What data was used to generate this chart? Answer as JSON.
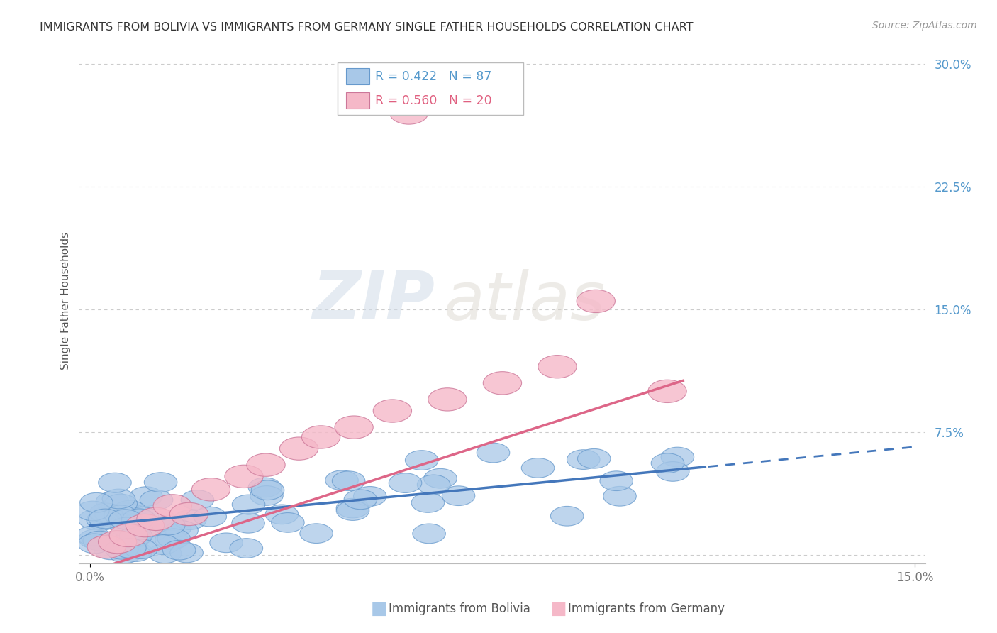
{
  "title": "IMMIGRANTS FROM BOLIVIA VS IMMIGRANTS FROM GERMANY SINGLE FATHER HOUSEHOLDS CORRELATION CHART",
  "source": "Source: ZipAtlas.com",
  "ylabel": "Single Father Households",
  "xlabel_bolivia": "Immigrants from Bolivia",
  "xlabel_germany": "Immigrants from Germany",
  "watermark_zip": "ZIP",
  "watermark_atlas": "atlas",
  "bolivia_R": 0.422,
  "bolivia_N": 87,
  "germany_R": 0.56,
  "germany_N": 20,
  "xlim": [
    -0.002,
    0.152
  ],
  "ylim": [
    -0.005,
    0.315
  ],
  "yticks": [
    0.0,
    0.075,
    0.15,
    0.225,
    0.3
  ],
  "xticks": [
    0.0,
    0.15
  ],
  "bolivia_color": "#a8c8e8",
  "bolivia_edge": "#6699cc",
  "germany_color": "#f5b8c8",
  "germany_edge": "#cc7799",
  "bolivia_line_color": "#4477bb",
  "germany_line_color": "#dd6688",
  "background_color": "#ffffff",
  "grid_color": "#cccccc",
  "tick_label_color": "#5599cc",
  "title_color": "#333333",
  "source_color": "#999999",
  "ylabel_color": "#555555"
}
